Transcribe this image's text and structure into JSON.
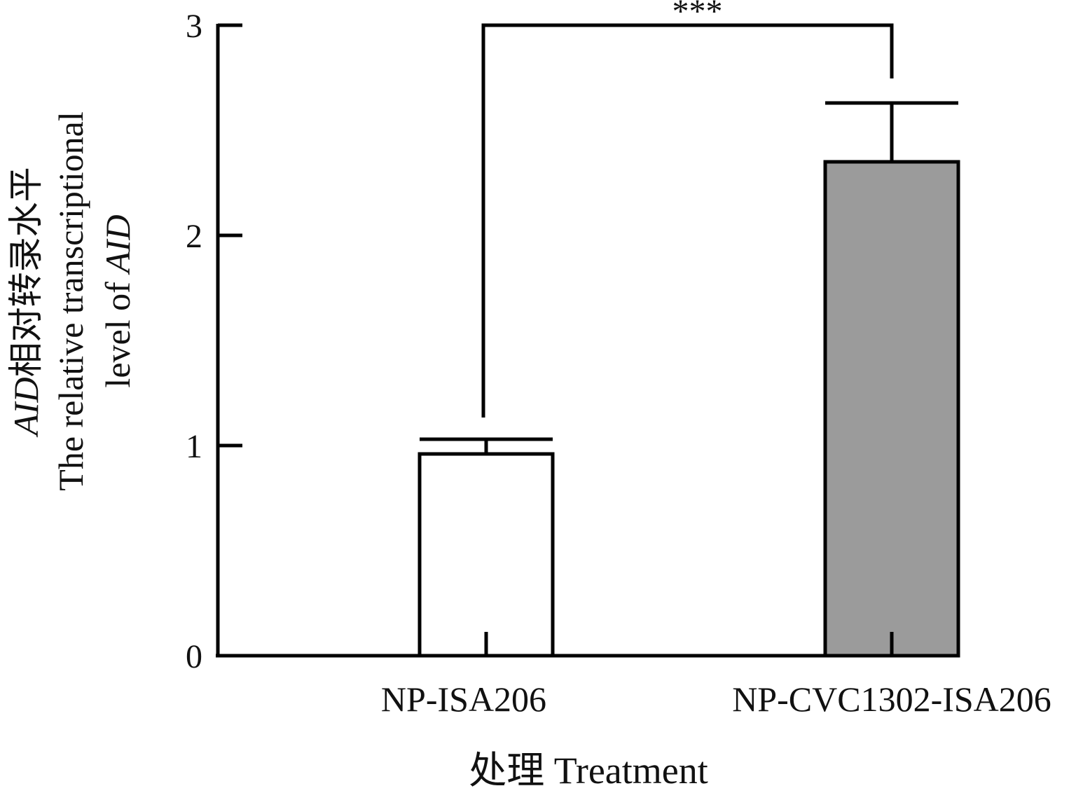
{
  "chart_data": {
    "type": "bar",
    "categories": [
      "NP-ISA206",
      "NP-CVC1302-ISA206"
    ],
    "values": [
      0.96,
      2.35
    ],
    "errors": [
      0.07,
      0.28
    ],
    "bar_colors": [
      "#ffffff",
      "#9b9b9b"
    ],
    "ylim": [
      0,
      3
    ],
    "yticks": [
      "0",
      "1",
      "2",
      "3"
    ],
    "ylabel_line1_italic": "AID",
    "ylabel_line1_cn": "相对转录水平",
    "ylabel_line2": "The relative transcriptional",
    "ylabel_line3_prefix": "level of ",
    "ylabel_line3_italic": "AID",
    "xlabel": "处理 Treatment",
    "significance": {
      "pair": [
        0,
        1
      ],
      "label": "***",
      "y": 3.0
    }
  }
}
